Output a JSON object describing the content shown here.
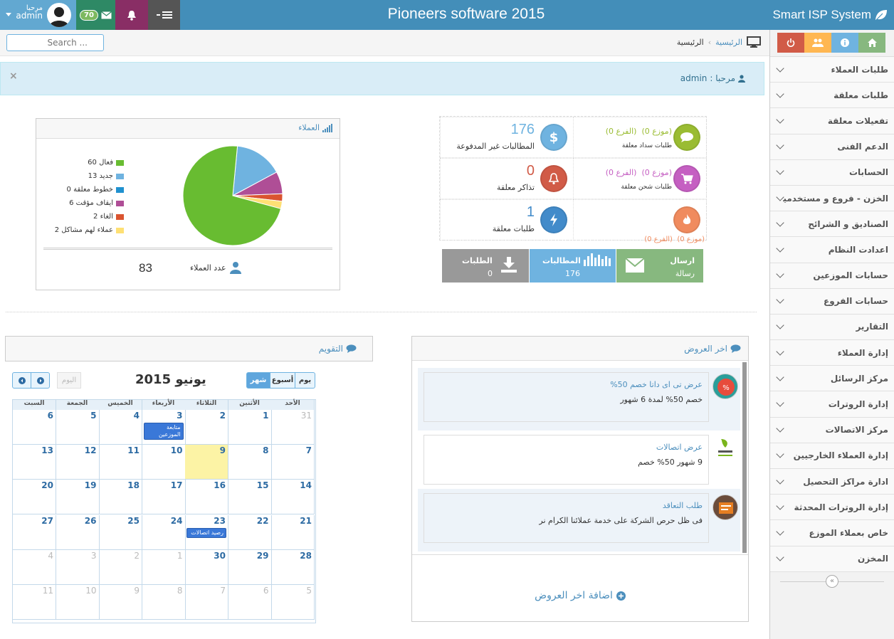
{
  "topbar": {
    "brand": "Smart ISP System",
    "title": "Pioneers software 2015",
    "user": {
      "greeting": "مرحبا",
      "name": "admin"
    },
    "mail_count": "70"
  },
  "breadcrumb": {
    "home": "الرئيسية",
    "current": "الرئيسية"
  },
  "search": {
    "placeholder": "Search ..."
  },
  "alert": {
    "label": "مرحبا :",
    "name": "admin"
  },
  "sidebar": {
    "items": [
      {
        "label": "طلبات العملاء"
      },
      {
        "label": "طلبات معلقة"
      },
      {
        "label": "تفعيلات معلقة"
      },
      {
        "label": "الدعم الفنى"
      },
      {
        "label": "الحسابات"
      },
      {
        "label": "الخزن - فروع و مستخدمين"
      },
      {
        "label": "الصناديق و الشرائح"
      },
      {
        "label": "اعدادت النظام"
      },
      {
        "label": "حسابات الموزعين"
      },
      {
        "label": "حسابات الفروع"
      },
      {
        "label": "التقارير"
      },
      {
        "label": "إدارة العملاء"
      },
      {
        "label": "مركز الرسائل"
      },
      {
        "label": "إدارة الروترات"
      },
      {
        "label": "مركز الاتصالات"
      },
      {
        "label": "إدارة العملاء الخارجيين"
      },
      {
        "label": "ادارة مراكز التحصيل"
      },
      {
        "label": "إدارة الروترات المحدثة"
      },
      {
        "label": "خاص بعملاء الموزع"
      },
      {
        "label": "المخزن"
      }
    ],
    "shortcut_colors": [
      "#d15b47",
      "#ffb752",
      "#6fb3e0",
      "#87b87f"
    ]
  },
  "stats": {
    "unpaid": {
      "value": "176",
      "label": "المطالبات غير المدفوعة"
    },
    "pay_pending": {
      "branch": "(الفرع 0)",
      "dist": "(موزع 0)",
      "label": "طلبات سداد معلقة"
    },
    "tickets": {
      "value": "0",
      "label": "تذاكر معلقة"
    },
    "charge_pending": {
      "branch": "(الفرع 0)",
      "dist": "(موزع 0)",
      "label": "طلبات شحن معلقة"
    },
    "requests": {
      "value": "1",
      "label": "طلبات معلقة"
    },
    "other": {
      "branch": "(الفرع 0)",
      "dist": "(موزع 0)"
    }
  },
  "actions": {
    "send": {
      "title": "ارسال",
      "sub": "رسالة",
      "color": "#87b87f"
    },
    "claims": {
      "title": "المطالبات",
      "value": "176",
      "color": "#6fb3e0"
    },
    "orders": {
      "title": "الطلبات",
      "value": "0",
      "color": "#999999"
    }
  },
  "customers": {
    "title": "العملاء",
    "count_label": "عدد العملاء",
    "count": "83"
  },
  "chart_data": {
    "type": "pie",
    "categories": [
      "فعال",
      "جديد",
      "خطوط معلقة",
      "ايقاف مؤقت",
      "الغاء",
      "عملاء لهم مشاكل"
    ],
    "values": [
      60,
      13,
      0,
      6,
      2,
      2
    ],
    "colors": [
      "#68bc31",
      "#6fb3e0",
      "#2091cf",
      "#af4e96",
      "#da5430",
      "#fee074"
    ],
    "legend_labels": [
      "فعال 60",
      "جديد 13",
      "خطوط معلقة 0",
      "ايقاف مؤقت 6",
      "الغاء 2",
      "عملاء لهم مشاكل 2"
    ],
    "legend": "left"
  },
  "offers": {
    "title": "اخر العروض",
    "items": [
      {
        "title": "عرض تى اى داتا خصم 50%",
        "body": "خصم 50% لمدة 6 شهور"
      },
      {
        "title": "عرض اتصالات",
        "body": "9 شهور 50% خصم"
      },
      {
        "title": "طلب التعاقد",
        "body": "فى ظل حرص الشركة على خدمة عملائنا الكرام نر"
      }
    ],
    "add_label": "اضافة اخر العروض"
  },
  "calendar": {
    "title": "التقويم",
    "month_title": "يونيو 2015",
    "today_btn": "اليوم",
    "views": [
      "يوم",
      "أسبوع",
      "شهر"
    ],
    "days": [
      "السبت",
      "الجمعة",
      "الخميس",
      "الأربعاء",
      "الثلاثاء",
      "الأثنين",
      "الأحد"
    ],
    "weeks": [
      [
        "6",
        "5",
        "4",
        "3",
        "2",
        "1",
        "31"
      ],
      [
        "13",
        "12",
        "11",
        "10",
        "9",
        "8",
        "7"
      ],
      [
        "20",
        "19",
        "18",
        "17",
        "16",
        "15",
        "14"
      ],
      [
        "27",
        "26",
        "25",
        "24",
        "23",
        "22",
        "21"
      ],
      [
        "4",
        "3",
        "2",
        "1",
        "30",
        "29",
        "28"
      ],
      [
        "11",
        "10",
        "9",
        "8",
        "7",
        "6",
        "5"
      ]
    ],
    "events": [
      {
        "text": "متابعة الموزعين"
      },
      {
        "text": "رصيد اتصالات"
      }
    ]
  }
}
